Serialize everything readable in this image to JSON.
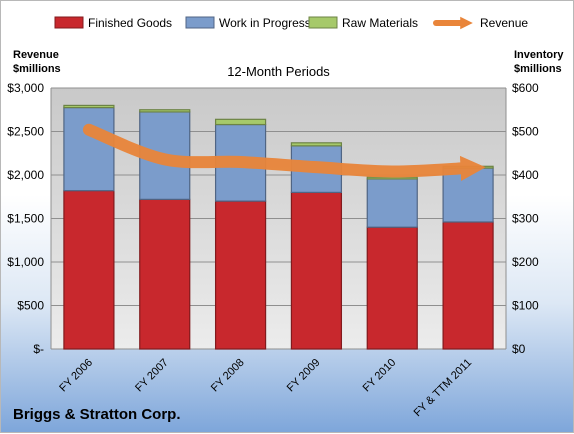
{
  "chart_data": {
    "type": "bar",
    "subtitle": "12-Month Periods",
    "company": "Briggs & Stratton Corp.",
    "left_axis_title": [
      "Revenue",
      "$millions"
    ],
    "right_axis_title": [
      "Inventory",
      "$millions"
    ],
    "categories": [
      "FY 2006",
      "FY 2007",
      "FY 2008",
      "FY 2009",
      "FY 2010",
      "FY & TTM 2011"
    ],
    "left_ticks": [
      "$-",
      "$500",
      "$1,000",
      "$1,500",
      "$2,000",
      "$2,500",
      "$3,000"
    ],
    "right_ticks": [
      "$0",
      "$100",
      "$200",
      "$300",
      "$400",
      "$500",
      "$600"
    ],
    "ylim_left": [
      0,
      3000
    ],
    "ylim_right": [
      0,
      600
    ],
    "legend_position": "top",
    "stacked_series_axis": "right",
    "series": [
      {
        "name": "Finished Goods",
        "color": "#c8282d",
        "values": [
          364,
          344,
          340,
          360,
          280,
          292
        ]
      },
      {
        "name": "Work in Progress",
        "color": "#7b9ccb",
        "values": [
          191,
          201,
          176,
          107,
          111,
          124
        ]
      },
      {
        "name": "Raw Materials",
        "color": "#a6c96a",
        "values": [
          5,
          5,
          12,
          7,
          4,
          4
        ]
      }
    ],
    "line_series": {
      "name": "Revenue",
      "color": "#e9853a",
      "axis": "left",
      "values": [
        2520,
        2180,
        2150,
        2090,
        2040,
        2080
      ]
    }
  }
}
